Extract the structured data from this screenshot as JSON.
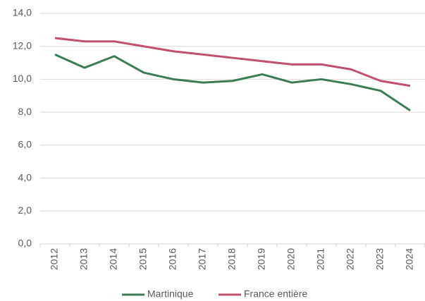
{
  "chart_data": {
    "type": "line",
    "categories": [
      "2012",
      "2013",
      "2014",
      "2015",
      "2016",
      "2017",
      "2018",
      "2019",
      "2020",
      "2021",
      "2022",
      "2023",
      "2024"
    ],
    "series": [
      {
        "name": "Martinique",
        "color": "#3a7d55",
        "values": [
          11.5,
          10.7,
          11.4,
          10.4,
          10.0,
          9.8,
          9.9,
          10.3,
          9.8,
          10.0,
          9.7,
          9.3,
          8.1
        ]
      },
      {
        "name": "France entière",
        "color": "#c0506e",
        "values": [
          12.5,
          12.3,
          12.3,
          12.0,
          11.7,
          11.5,
          11.3,
          11.1,
          10.9,
          10.9,
          10.6,
          9.9,
          9.6
        ]
      }
    ],
    "ylim": [
      0,
      14
    ],
    "yticks": [
      {
        "value": 0,
        "label": "0,0"
      },
      {
        "value": 2,
        "label": "2,0"
      },
      {
        "value": 4,
        "label": "4,0"
      },
      {
        "value": 6,
        "label": "6,0"
      },
      {
        "value": 8,
        "label": "8,0"
      },
      {
        "value": 10,
        "label": "10,0"
      },
      {
        "value": 12,
        "label": "12,0"
      },
      {
        "value": 14,
        "label": "14,0"
      }
    ],
    "grid": true,
    "legend": "bottom"
  }
}
